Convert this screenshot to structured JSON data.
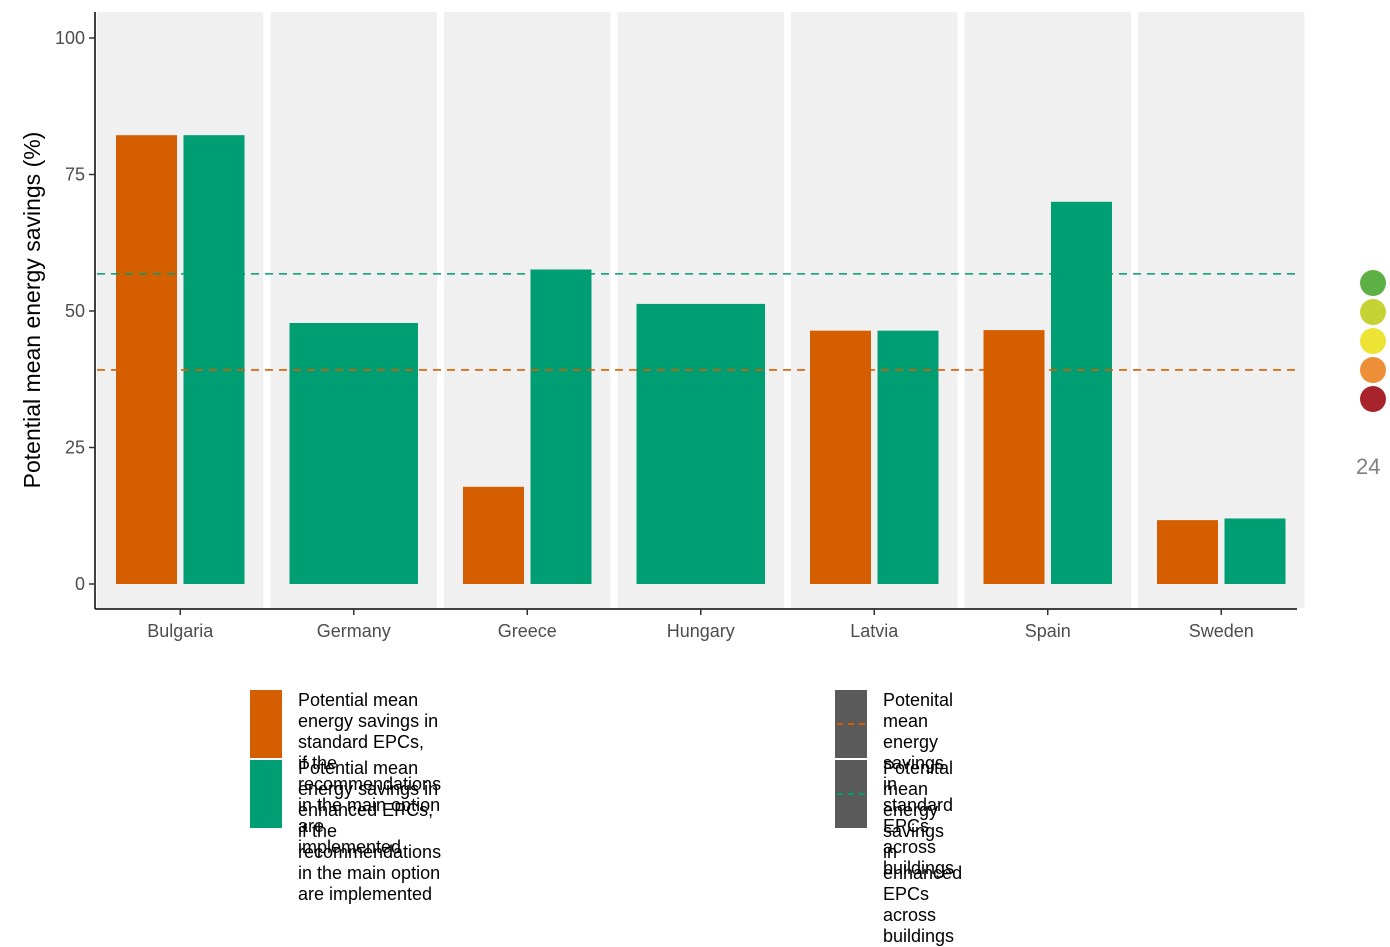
{
  "chart_data": {
    "type": "bar",
    "categories": [
      "Bulgaria",
      "Germany",
      "Greece",
      "Hungary",
      "Latvia",
      "Spain",
      "Sweden"
    ],
    "series": [
      {
        "name": "Potential mean energy savings in standard EPCs, if the recommendations in the main option are implemented",
        "color": "#d55e00",
        "values": [
          82.2,
          null,
          17.8,
          null,
          46.4,
          46.5,
          11.7
        ]
      },
      {
        "name": "Potential mean energy savings in enhanced EPCs, if the recommendations in the main option are implemented",
        "color": "#009e73",
        "values": [
          82.2,
          47.8,
          57.6,
          51.3,
          46.4,
          70.0,
          12.0
        ]
      }
    ],
    "reference_lines": [
      {
        "name": "Potenital mean energy savings in standard EPCs across buildings",
        "value": 39.2,
        "color": "#d55e00",
        "style": "dashed"
      },
      {
        "name": "Potenital mean energy savings in enhanced EPCs across buildings",
        "value": 56.8,
        "color": "#009e73",
        "style": "dashed"
      }
    ],
    "ylabel": "Potential mean energy savings (%)",
    "xlabel": "",
    "ylim": [
      0,
      100
    ],
    "yticks": [
      0,
      25,
      50,
      75,
      100
    ],
    "panel_background": "#f0f0f0",
    "legend_position": "bottom"
  },
  "legend": {
    "std_bar": [
      "Potential mean energy savings in standard EPCs,",
      "if the recommendations in the main option are",
      "implemented"
    ],
    "enh_bar": [
      "Potential mean energy savings in enhanced EPCs,",
      "if the recommendations in the main option",
      "are implemented"
    ],
    "std_line": [
      "Potenital mean energy",
      "savings in standard EPCs",
      "across buildings"
    ],
    "enh_line": [
      "Potenital mean energy",
      "savings in enhanced EPCs",
      "across buildings"
    ]
  },
  "side": {
    "page_number": "24",
    "dots": [
      "#5db043",
      "#c4d333",
      "#ede335",
      "#ed8f37",
      "#a9232d"
    ]
  }
}
